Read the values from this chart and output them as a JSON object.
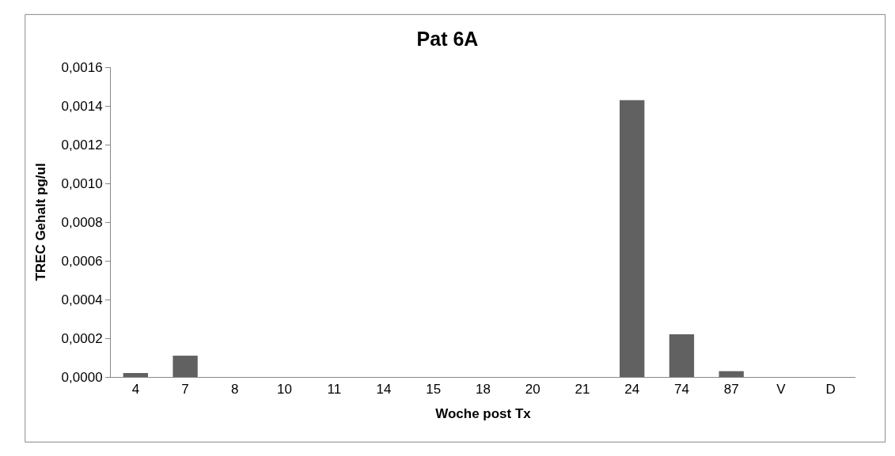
{
  "chart_data": {
    "type": "bar",
    "title": "Pat 6A",
    "xlabel": "Woche post Tx",
    "ylabel": "TREC Gehalt pg/ul",
    "categories": [
      "4",
      "7",
      "8",
      "10",
      "11",
      "14",
      "15",
      "18",
      "20",
      "21",
      "24",
      "74",
      "87",
      "V",
      "D"
    ],
    "values": [
      2e-05,
      0.00011,
      0,
      0,
      0,
      0,
      0,
      0,
      0,
      0,
      0.00143,
      0.00022,
      3e-05,
      0,
      0
    ],
    "color": "#616161",
    "ylim": [
      0,
      0.0016
    ],
    "yticks": [
      {
        "value": 0,
        "label": "0,0000"
      },
      {
        "value": 0.0002,
        "label": "0,0002"
      },
      {
        "value": 0.0004,
        "label": "0,0004"
      },
      {
        "value": 0.0006,
        "label": "0,0006"
      },
      {
        "value": 0.0008,
        "label": "0,0008"
      },
      {
        "value": 0.001,
        "label": "0,0010"
      },
      {
        "value": 0.0012,
        "label": "0,0012"
      },
      {
        "value": 0.0014,
        "label": "0,0014"
      },
      {
        "value": 0.0016,
        "label": "0,0016"
      }
    ],
    "legend": false
  }
}
